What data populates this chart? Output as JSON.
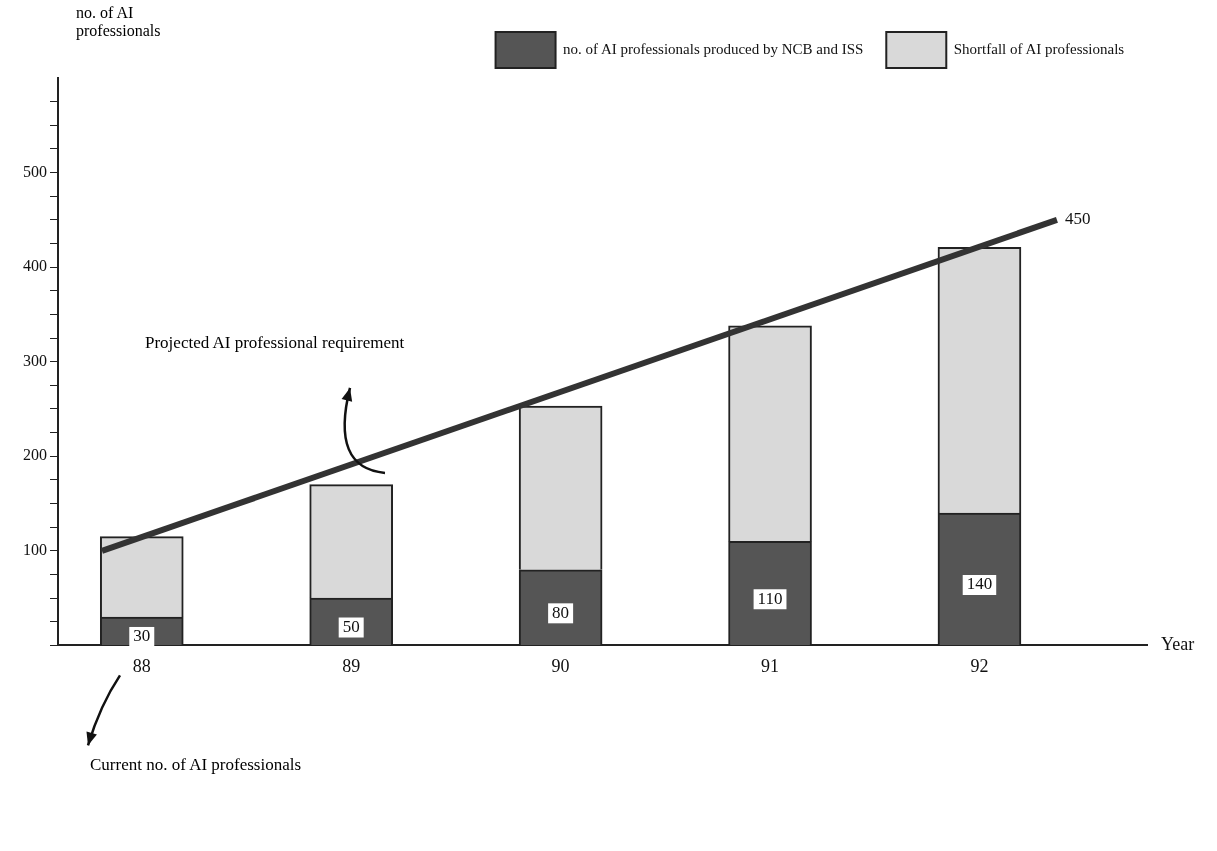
{
  "chart_data": {
    "type": "bar",
    "stacked": true,
    "xlabel": "Year",
    "ylabel": "no. of AI professionals",
    "x": [
      88,
      89,
      90,
      91,
      92
    ],
    "series": [
      {
        "name": "no. of AI professionals produced by NCB and ISS",
        "color": "#555555",
        "values": [
          30,
          50,
          80,
          110,
          140
        ],
        "value_labels": [
          "30",
          "50",
          "80",
          "110",
          "140"
        ]
      },
      {
        "name": "Shortfall of AI professionals",
        "color": "#d9d9d9",
        "values": [
          85,
          120,
          173,
          228,
          281
        ]
      },
      {
        "type": "line",
        "color": "#333333",
        "x": [
          87.81,
          92.37
        ],
        "values": [
          100,
          450
        ]
      }
    ],
    "xlim": [
      87.6,
      92.8
    ],
    "xticks": [
      88,
      89,
      90,
      91,
      92
    ],
    "ylim": [
      0,
      600
    ],
    "yticks": [
      {
        "value": 0,
        "label": null
      },
      {
        "value": 25,
        "label": null
      },
      {
        "value": 50,
        "label": null
      },
      {
        "value": 75,
        "label": null
      },
      100,
      {
        "value": 125,
        "label": null
      },
      {
        "value": 150,
        "label": null
      },
      {
        "value": 175,
        "label": null
      },
      200,
      {
        "value": 225,
        "label": null
      },
      {
        "value": 250,
        "label": null
      },
      {
        "value": 275,
        "label": null
      },
      300,
      {
        "value": 325,
        "label": null
      },
      {
        "value": 350,
        "label": null
      },
      {
        "value": 375,
        "label": null
      },
      400,
      {
        "value": 425,
        "label": null
      },
      {
        "value": 450,
        "label": null
      },
      {
        "value": 475,
        "label": null
      },
      500,
      {
        "value": 525,
        "label": null
      },
      {
        "value": 550,
        "label": null
      },
      {
        "value": 575,
        "label": null
      }
    ],
    "legend": "top right",
    "grid": false,
    "annotations": [
      {
        "text": "450",
        "x": 92.37,
        "y": 450
      },
      "Projected AI professional requirement",
      "Current no. of AI professionals"
    ]
  }
}
